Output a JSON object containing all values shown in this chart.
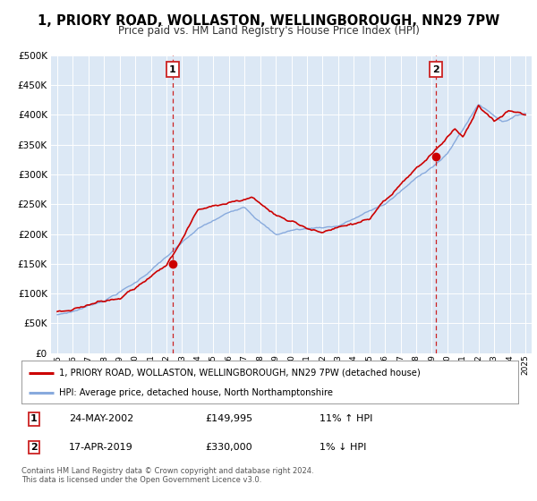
{
  "title": "1, PRIORY ROAD, WOLLASTON, WELLINGBOROUGH, NN29 7PW",
  "subtitle": "Price paid vs. HM Land Registry's House Price Index (HPI)",
  "red_label": "1, PRIORY ROAD, WOLLASTON, WELLINGBOROUGH, NN29 7PW (detached house)",
  "blue_label": "HPI: Average price, detached house, North Northamptonshire",
  "annotation1_label": "1",
  "annotation1_date": "24-MAY-2002",
  "annotation1_price": "£149,995",
  "annotation1_hpi": "11% ↑ HPI",
  "annotation2_label": "2",
  "annotation2_date": "17-APR-2019",
  "annotation2_price": "£330,000",
  "annotation2_hpi": "1% ↓ HPI",
  "footer1": "Contains HM Land Registry data © Crown copyright and database right 2024.",
  "footer2": "This data is licensed under the Open Government Licence v3.0.",
  "ylim": [
    0,
    500000
  ],
  "yticks": [
    0,
    50000,
    100000,
    150000,
    200000,
    250000,
    300000,
    350000,
    400000,
    450000,
    500000
  ],
  "xlim_start": 1994.6,
  "xlim_end": 2025.4,
  "red_color": "#cc0000",
  "blue_color": "#88aadd",
  "bg_color": "#dce8f5",
  "grid_color": "#ffffff",
  "vline_color": "#cc2222",
  "marker1_x": 2002.39,
  "marker1_y": 149995,
  "marker2_x": 2019.29,
  "marker2_y": 330000,
  "vline1_x": 2002.39,
  "vline2_x": 2019.29,
  "title_fontsize": 10.5,
  "subtitle_fontsize": 8.5
}
